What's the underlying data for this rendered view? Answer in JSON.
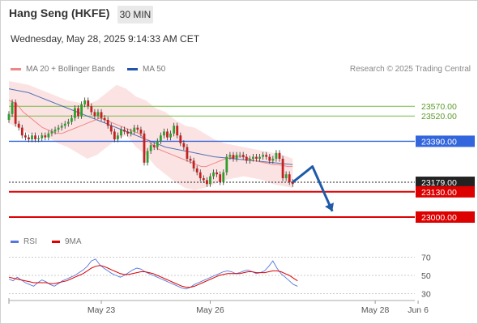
{
  "header": {
    "title": "Hang Seng (HKFE)",
    "timeframe": "30 MIN",
    "datetime": "Wednesday, May 28, 2025 9:14:33 AM CET",
    "credit": "Research © 2025 Trading Central"
  },
  "legend": {
    "ma20": {
      "label": "MA 20 + Bollinger Bands",
      "color": "#ee8888"
    },
    "ma50": {
      "label": "MA 50",
      "color": "#2255aa"
    },
    "rsi": {
      "label": "RSI",
      "color": "#5577dd"
    },
    "ma9": {
      "label": "9MA",
      "color": "#dd0000"
    }
  },
  "chart_data": [
    {
      "type": "candlestick",
      "series_index": [
        0,
        123
      ],
      "ylim": [
        22950,
        23700
      ],
      "x_ticks": [
        {
          "label": "May 23",
          "index": 28
        },
        {
          "label": "May 26",
          "index": 61
        },
        {
          "label": "May 28",
          "index": 111
        },
        {
          "label": "Jun 6",
          "index": 124
        }
      ],
      "close": [
        23530,
        23590,
        23480,
        23460,
        23420,
        23410,
        23400,
        23420,
        23400,
        23405,
        23420,
        23410,
        23430,
        23440,
        23450,
        23460,
        23470,
        23480,
        23490,
        23510,
        23560,
        23520,
        23580,
        23600,
        23570,
        23540,
        23520,
        23540,
        23510,
        23500,
        23470,
        23440,
        23400,
        23420,
        23450,
        23440,
        23430,
        23440,
        23460,
        23450,
        23430,
        23280,
        23340,
        23370,
        23360,
        23390,
        23420,
        23440,
        23410,
        23430,
        23470,
        23420,
        23380,
        23360,
        23300,
        23290,
        23250,
        23230,
        23200,
        23190,
        23170,
        23210,
        23230,
        23220,
        23180,
        23230,
        23310,
        23320,
        23300,
        23320,
        23320,
        23310,
        23290,
        23300,
        23310,
        23300,
        23310,
        23320,
        23310,
        23290,
        23300,
        23330,
        23300,
        23200,
        23220,
        23180,
        23170
      ],
      "open": [
        23500,
        23530,
        23590,
        23480,
        23460,
        23420,
        23410,
        23400,
        23420,
        23400,
        23405,
        23420,
        23410,
        23430,
        23440,
        23450,
        23460,
        23470,
        23480,
        23490,
        23510,
        23560,
        23520,
        23580,
        23600,
        23570,
        23540,
        23520,
        23540,
        23510,
        23500,
        23470,
        23440,
        23400,
        23420,
        23450,
        23440,
        23430,
        23440,
        23460,
        23450,
        23430,
        23280,
        23340,
        23370,
        23360,
        23390,
        23420,
        23440,
        23410,
        23430,
        23470,
        23420,
        23380,
        23360,
        23300,
        23290,
        23250,
        23230,
        23200,
        23190,
        23170,
        23210,
        23230,
        23220,
        23180,
        23230,
        23310,
        23320,
        23300,
        23320,
        23320,
        23310,
        23290,
        23300,
        23310,
        23300,
        23310,
        23320,
        23310,
        23290,
        23300,
        23330,
        23300,
        23200,
        23220,
        23180
      ],
      "ma20": [
        23600,
        23590,
        23570,
        23540,
        23520,
        23500,
        23480,
        23460,
        23450,
        23440,
        23430,
        23430,
        23440,
        23450,
        23460,
        23470,
        23480,
        23490,
        23500,
        23510,
        23500,
        23490,
        23480,
        23470,
        23460,
        23450,
        23440,
        23430,
        23410,
        23390,
        23370,
        23350,
        23340,
        23330,
        23320,
        23310,
        23300,
        23290,
        23280,
        23270,
        23260,
        23260,
        23270,
        23280,
        23290,
        23300,
        23305,
        23310,
        23310,
        23310,
        23300,
        23290,
        23285,
        23280,
        23275,
        23270,
        23270,
        23265,
        23260,
        23260
      ],
      "ma50": [
        23660,
        23650,
        23640,
        23620,
        23600,
        23580,
        23560,
        23540,
        23520,
        23500,
        23480,
        23460,
        23440,
        23420,
        23400,
        23380,
        23360,
        23350,
        23340,
        23330,
        23320,
        23310,
        23305,
        23300,
        23295,
        23290,
        23285,
        23280,
        23275,
        23270
      ],
      "bb_upper": [
        23700,
        23690,
        23680,
        23660,
        23640,
        23620,
        23600,
        23590,
        23580,
        23600,
        23640,
        23680,
        23660,
        23620,
        23600,
        23560,
        23540,
        23500,
        23470,
        23460,
        23430,
        23400,
        23380,
        23370,
        23360,
        23350,
        23340,
        23330,
        23320,
        23300
      ],
      "bb_lower": [
        23480,
        23460,
        23430,
        23420,
        23410,
        23380,
        23360,
        23330,
        23300,
        23320,
        23360,
        23400,
        23420,
        23360,
        23320,
        23260,
        23220,
        23180,
        23150,
        23140,
        23150,
        23170,
        23190,
        23200,
        23210,
        23200,
        23190,
        23170,
        23160,
        23150
      ],
      "levels": [
        {
          "label": "23570.00",
          "value": 23570,
          "color": "#77bb44",
          "weight": "thin"
        },
        {
          "label": "23520.00",
          "value": 23520,
          "color": "#77bb44",
          "weight": "thin"
        },
        {
          "label": "23390.00",
          "value": 23390,
          "color": "#3366dd",
          "weight": "medium"
        },
        {
          "label": "23179.00",
          "value": 23179,
          "color": "#222222",
          "weight": "current"
        },
        {
          "label": "23130.00",
          "value": 23130,
          "color": "#dd0000",
          "weight": "thick"
        },
        {
          "label": "23000.00",
          "value": 23000,
          "color": "#dd0000",
          "weight": "thick"
        }
      ],
      "projection": [
        [
          23179,
          0
        ],
        [
          23260,
          6
        ],
        [
          23030,
          12
        ]
      ]
    },
    {
      "type": "line",
      "title": "RSI",
      "ylim": [
        25,
        75
      ],
      "y_ticks": [
        "70",
        "50",
        "30"
      ],
      "rsi": [
        46,
        44,
        48,
        45,
        42,
        40,
        38,
        42,
        45,
        43,
        40,
        38,
        41,
        44,
        46,
        48,
        50,
        53,
        56,
        60,
        66,
        68,
        62,
        58,
        55,
        52,
        50,
        48,
        50,
        53,
        56,
        58,
        57,
        54,
        52,
        50,
        48,
        46,
        44,
        42,
        40,
        38,
        36,
        35,
        37,
        40,
        42,
        44,
        46,
        48,
        50,
        52,
        54,
        55,
        54,
        52,
        53,
        55,
        56,
        54,
        52,
        53,
        55,
        60,
        66,
        58,
        52,
        48,
        44,
        40,
        38
      ],
      "ma9": [
        48,
        47,
        46,
        45,
        44,
        43,
        42,
        42,
        42,
        42,
        41,
        41,
        42,
        43,
        44,
        46,
        48,
        50,
        52,
        55,
        58,
        60,
        61,
        60,
        58,
        56,
        54,
        52,
        51,
        51,
        52,
        53,
        54,
        54,
        53,
        52,
        50,
        48,
        46,
        44,
        42,
        40,
        38,
        37,
        37,
        38,
        40,
        42,
        44,
        46,
        48,
        50,
        51,
        52,
        52,
        52,
        52,
        53,
        54,
        54,
        53,
        53,
        53,
        54,
        55,
        55,
        54,
        52,
        50,
        47,
        44
      ]
    }
  ]
}
